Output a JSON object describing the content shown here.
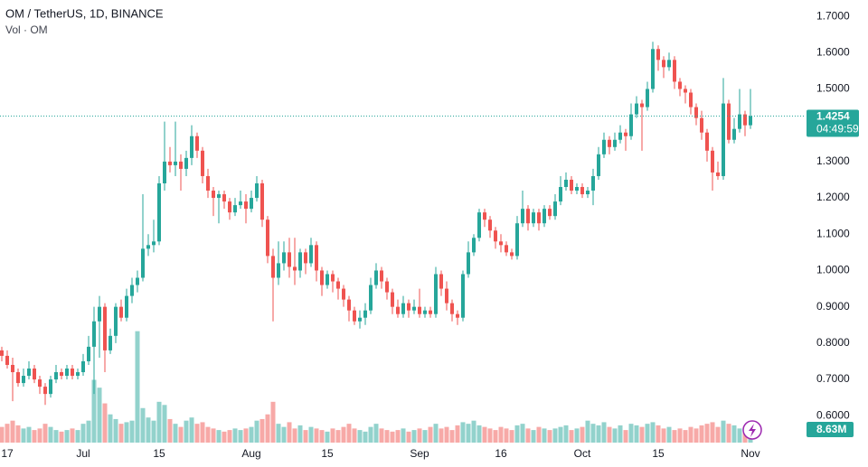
{
  "chart_data": {
    "type": "candlestick",
    "title": "OM / TetherUS, 1D, BINANCE",
    "volume_title": "Vol · OM",
    "countdown": "04:49:59",
    "volume_label": "8.63M",
    "up_color": "#26a69a",
    "down_color": "#ef5350",
    "ylim": [
      0.526,
      1.745
    ],
    "yticks": [
      {
        "value": 1.7,
        "label": "1.7000"
      },
      {
        "value": 1.6,
        "label": "1.6000"
      },
      {
        "value": 1.5,
        "label": "1.5000"
      },
      {
        "value": 1.4,
        "label": "1.4000"
      },
      {
        "value": 1.3,
        "label": "1.3000"
      },
      {
        "value": 1.2,
        "label": "1.2000"
      },
      {
        "value": 1.1,
        "label": "1.1000"
      },
      {
        "value": 1.0,
        "label": "1.0000"
      },
      {
        "value": 0.9,
        "label": "0.9000"
      },
      {
        "value": 0.8,
        "label": "0.8000"
      },
      {
        "value": 0.7,
        "label": "0.7000"
      },
      {
        "value": 0.6,
        "label": "0.6000"
      }
    ],
    "xticks": [
      {
        "value": 1,
        "label": "17"
      },
      {
        "value": 15,
        "label": "Jul"
      },
      {
        "value": 29,
        "label": "15"
      },
      {
        "value": 46,
        "label": "Aug"
      },
      {
        "value": 60,
        "label": "15"
      },
      {
        "value": 77,
        "label": "Sep"
      },
      {
        "value": 92,
        "label": "16"
      },
      {
        "value": 107,
        "label": "Oct"
      },
      {
        "value": 121,
        "label": "15"
      },
      {
        "value": 138,
        "label": "Nov"
      }
    ],
    "volume_lim": [
      0,
      282
    ],
    "open": [
      0.78,
      0.765,
      0.74,
      0.72,
      0.69,
      0.71,
      0.73,
      0.7,
      0.68,
      0.66,
      0.7,
      0.72,
      0.71,
      0.73,
      0.71,
      0.72,
      0.75,
      0.79,
      0.86,
      0.9,
      0.78,
      0.82,
      0.9,
      0.87,
      0.93,
      0.96,
      0.98,
      1.06,
      1.07,
      1.08,
      1.24,
      1.3,
      1.29,
      1.3,
      1.28,
      1.31,
      1.37,
      1.33,
      1.26,
      1.22,
      1.2,
      1.21,
      1.19,
      1.16,
      1.18,
      1.19,
      1.17,
      1.2,
      1.24,
      1.14,
      1.04,
      0.98,
      1.02,
      1.05,
      1.01,
      1.0,
      1.05,
      1.02,
      1.07,
      1.0,
      0.96,
      0.99,
      0.97,
      0.95,
      0.92,
      0.89,
      0.86,
      0.87,
      0.89,
      0.96,
      1.0,
      0.97,
      0.94,
      0.9,
      0.88,
      0.91,
      0.89,
      0.9,
      0.88,
      0.89,
      0.88,
      0.99,
      0.95,
      0.91,
      0.88,
      0.87,
      0.99,
      1.05,
      1.09,
      1.16,
      1.14,
      1.11,
      1.08,
      1.07,
      1.05,
      1.04,
      1.13,
      1.17,
      1.13,
      1.16,
      1.13,
      1.17,
      1.15,
      1.19,
      1.23,
      1.25,
      1.22,
      1.23,
      1.21,
      1.22,
      1.26,
      1.32,
      1.36,
      1.34,
      1.36,
      1.38,
      1.37,
      1.43,
      1.46,
      1.45,
      1.5,
      1.61,
      1.58,
      1.56,
      1.58,
      1.52,
      1.5,
      1.49,
      1.45,
      1.42,
      1.38,
      1.33,
      1.27,
      1.26,
      1.46,
      1.36,
      1.39,
      1.43,
      1.4
    ],
    "high": [
      0.79,
      0.78,
      0.76,
      0.73,
      0.73,
      0.75,
      0.74,
      0.71,
      0.69,
      0.71,
      0.74,
      0.73,
      0.74,
      0.74,
      0.73,
      0.77,
      0.82,
      0.9,
      0.93,
      0.91,
      0.84,
      0.91,
      0.92,
      0.95,
      0.98,
      1.0,
      1.21,
      1.1,
      1.14,
      1.26,
      1.41,
      1.34,
      1.41,
      1.32,
      1.33,
      1.4,
      1.38,
      1.34,
      1.28,
      1.23,
      1.22,
      1.22,
      1.2,
      1.2,
      1.22,
      1.21,
      1.22,
      1.26,
      1.25,
      1.15,
      1.06,
      1.08,
      1.08,
      1.09,
      1.09,
      1.06,
      1.06,
      1.09,
      1.08,
      1.01,
      1.0,
      1.0,
      0.98,
      0.96,
      0.93,
      0.9,
      0.89,
      0.91,
      0.98,
      1.02,
      1.01,
      0.98,
      0.95,
      0.92,
      0.93,
      0.92,
      0.92,
      0.95,
      0.9,
      0.9,
      1.01,
      1.0,
      0.97,
      0.92,
      0.89,
      1.0,
      1.08,
      1.1,
      1.17,
      1.17,
      1.15,
      1.12,
      1.1,
      1.08,
      1.06,
      1.15,
      1.22,
      1.18,
      1.17,
      1.17,
      1.18,
      1.18,
      1.21,
      1.26,
      1.27,
      1.26,
      1.24,
      1.24,
      1.23,
      1.28,
      1.34,
      1.38,
      1.37,
      1.38,
      1.4,
      1.39,
      1.46,
      1.48,
      1.47,
      1.52,
      1.63,
      1.62,
      1.59,
      1.6,
      1.59,
      1.53,
      1.51,
      1.5,
      1.46,
      1.44,
      1.39,
      1.34,
      1.3,
      1.53,
      1.47,
      1.42,
      1.5,
      1.44,
      1.5
    ],
    "low": [
      0.75,
      0.73,
      0.64,
      0.68,
      0.68,
      0.7,
      0.69,
      0.66,
      0.63,
      0.65,
      0.69,
      0.7,
      0.7,
      0.7,
      0.7,
      0.71,
      0.74,
      0.66,
      0.76,
      0.72,
      0.77,
      0.8,
      0.86,
      0.86,
      0.91,
      0.94,
      0.97,
      1.04,
      1.05,
      1.07,
      1.22,
      1.27,
      1.26,
      1.22,
      1.26,
      1.29,
      1.31,
      1.24,
      1.2,
      1.15,
      1.13,
      1.17,
      1.14,
      1.15,
      1.17,
      1.13,
      1.16,
      1.19,
      1.12,
      1.02,
      0.86,
      0.96,
      1.0,
      0.98,
      0.96,
      0.98,
      0.99,
      1.01,
      0.97,
      0.93,
      0.95,
      0.94,
      0.92,
      0.9,
      0.86,
      0.85,
      0.84,
      0.85,
      0.88,
      0.95,
      0.95,
      0.92,
      0.88,
      0.87,
      0.87,
      0.87,
      0.88,
      0.87,
      0.87,
      0.87,
      0.87,
      0.93,
      0.89,
      0.86,
      0.85,
      0.86,
      0.98,
      1.04,
      1.08,
      1.12,
      1.09,
      1.06,
      1.05,
      1.04,
      1.03,
      1.03,
      1.12,
      1.11,
      1.12,
      1.11,
      1.12,
      1.14,
      1.14,
      1.18,
      1.22,
      1.21,
      1.21,
      1.2,
      1.2,
      1.18,
      1.25,
      1.31,
      1.32,
      1.33,
      1.35,
      1.33,
      1.36,
      1.42,
      1.33,
      1.44,
      1.49,
      1.55,
      1.53,
      1.55,
      1.5,
      1.48,
      1.46,
      1.43,
      1.4,
      1.36,
      1.3,
      1.22,
      1.25,
      1.25,
      1.35,
      1.35,
      1.38,
      1.37,
      1.39
    ],
    "close": [
      0.765,
      0.74,
      0.72,
      0.69,
      0.71,
      0.73,
      0.7,
      0.68,
      0.66,
      0.7,
      0.72,
      0.71,
      0.73,
      0.71,
      0.72,
      0.75,
      0.79,
      0.86,
      0.9,
      0.78,
      0.82,
      0.9,
      0.87,
      0.93,
      0.96,
      0.98,
      1.06,
      1.07,
      1.08,
      1.24,
      1.3,
      1.29,
      1.3,
      1.28,
      1.31,
      1.37,
      1.33,
      1.26,
      1.22,
      1.2,
      1.21,
      1.19,
      1.16,
      1.18,
      1.19,
      1.17,
      1.2,
      1.24,
      1.14,
      1.04,
      0.98,
      1.02,
      1.05,
      1.01,
      1.0,
      1.05,
      1.02,
      1.07,
      1.0,
      0.96,
      0.99,
      0.97,
      0.95,
      0.92,
      0.89,
      0.86,
      0.87,
      0.89,
      0.96,
      1.0,
      0.97,
      0.94,
      0.9,
      0.88,
      0.91,
      0.89,
      0.9,
      0.88,
      0.89,
      0.88,
      0.99,
      0.95,
      0.91,
      0.88,
      0.87,
      0.99,
      1.05,
      1.09,
      1.16,
      1.14,
      1.11,
      1.08,
      1.07,
      1.05,
      1.04,
      1.13,
      1.17,
      1.13,
      1.16,
      1.13,
      1.17,
      1.15,
      1.19,
      1.23,
      1.25,
      1.22,
      1.23,
      1.21,
      1.22,
      1.26,
      1.32,
      1.36,
      1.34,
      1.36,
      1.38,
      1.37,
      1.43,
      1.46,
      1.45,
      1.5,
      1.61,
      1.58,
      1.56,
      1.58,
      1.52,
      1.5,
      1.49,
      1.45,
      1.42,
      1.38,
      1.33,
      1.27,
      1.26,
      1.46,
      1.36,
      1.39,
      1.43,
      1.4,
      1.4254
    ],
    "volume": [
      10,
      12,
      14,
      11,
      9,
      10,
      8,
      9,
      12,
      10,
      8,
      7,
      8,
      9,
      8,
      12,
      14,
      40,
      35,
      25,
      18,
      15,
      12,
      13,
      14,
      71,
      22,
      16,
      14,
      26,
      24,
      15,
      12,
      10,
      14,
      16,
      12,
      13,
      10,
      9,
      8,
      7,
      8,
      9,
      8,
      9,
      10,
      14,
      15,
      18,
      26,
      12,
      10,
      13,
      9,
      11,
      8,
      10,
      9,
      8,
      7,
      9,
      8,
      10,
      12,
      9,
      8,
      7,
      10,
      12,
      9,
      8,
      7,
      8,
      9,
      7,
      8,
      9,
      8,
      10,
      12,
      9,
      10,
      8,
      11,
      13,
      12,
      14,
      11,
      10,
      9,
      8,
      10,
      9,
      8,
      11,
      12,
      9,
      8,
      10,
      9,
      8,
      9,
      10,
      11,
      8,
      9,
      10,
      14,
      12,
      11,
      13,
      10,
      9,
      11,
      8,
      12,
      11,
      10,
      12,
      13,
      11,
      9,
      10,
      8,
      9,
      8,
      10,
      9,
      11,
      12,
      13,
      10,
      14,
      12,
      11,
      9,
      10,
      8.63
    ]
  }
}
